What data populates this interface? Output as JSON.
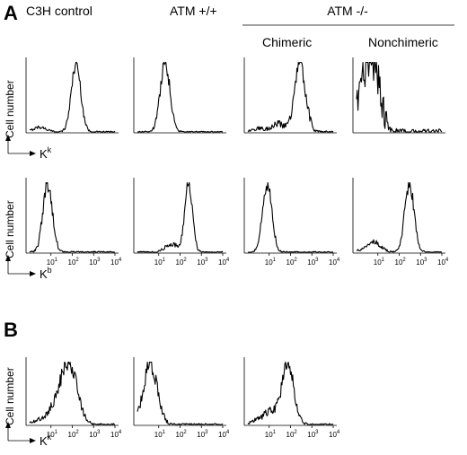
{
  "panels": [
    {
      "letter": "A"
    },
    {
      "letter": "B"
    }
  ],
  "headers": {
    "c3h": "C3H control",
    "atm_wt": "ATM +/+",
    "atm_ko": "ATM -/-",
    "chimeric": "Chimeric",
    "nonchimeric": "Nonchimeric"
  },
  "axis_labels": {
    "y": "Cell number",
    "x_kk_base": "K",
    "x_kk_sup": "k",
    "x_kb_base": "K",
    "x_kb_sup": "b"
  },
  "tick_labels": {
    "base": "10",
    "exps": [
      "1",
      "2",
      "3",
      "4"
    ]
  },
  "chart_data": [
    {
      "type": "area",
      "panel": "A",
      "row": 1,
      "group": "C3H control",
      "marker": "Kk",
      "x_scale": "log",
      "xlim": [
        1,
        10000
      ],
      "peak_x": 150,
      "width_decades": 0.22,
      "noise": 0.1,
      "extras": [
        {
          "x": 3,
          "h": 0.07
        }
      ]
    },
    {
      "type": "area",
      "panel": "A",
      "row": 1,
      "group": "ATM +/+",
      "marker": "Kk",
      "x_scale": "log",
      "xlim": [
        1,
        10000
      ],
      "peak_x": 20,
      "width_decades": 0.23,
      "noise": 0.1,
      "extras": []
    },
    {
      "type": "area",
      "panel": "A",
      "row": 1,
      "group": "ATM -/- Chimeric",
      "marker": "Kk",
      "x_scale": "log",
      "xlim": [
        1,
        10000
      ],
      "peak_x": 280,
      "width_decades": 0.26,
      "noise": 0.14,
      "extras": [
        {
          "x": 25,
          "h": 0.12
        },
        {
          "x": 3,
          "h": 0.05
        }
      ]
    },
    {
      "type": "area",
      "panel": "A",
      "row": 1,
      "group": "ATM -/- Nonchimeric",
      "marker": "Kk",
      "x_scale": "log",
      "xlim": [
        1,
        10000
      ],
      "peak_x": 6,
      "width_decades": 0.32,
      "noise": 0.38,
      "extras": [
        {
          "x": 2,
          "h": 0.5
        }
      ]
    },
    {
      "type": "area",
      "panel": "A",
      "row": 2,
      "group": "C3H control",
      "marker": "Kb",
      "x_scale": "log",
      "xlim": [
        1,
        10000
      ],
      "peak_x": 7,
      "width_decades": 0.22,
      "noise": 0.12,
      "extras": []
    },
    {
      "type": "area",
      "panel": "A",
      "row": 2,
      "group": "ATM +/+",
      "marker": "Kb",
      "x_scale": "log",
      "xlim": [
        1,
        10000
      ],
      "peak_x": 250,
      "width_decades": 0.18,
      "noise": 0.1,
      "extras": [
        {
          "x": 40,
          "h": 0.12
        }
      ]
    },
    {
      "type": "area",
      "panel": "A",
      "row": 2,
      "group": "ATM -/- Chimeric",
      "marker": "Kb",
      "x_scale": "log",
      "xlim": [
        1,
        10000
      ],
      "peak_x": 8,
      "width_decades": 0.22,
      "noise": 0.1,
      "extras": []
    },
    {
      "type": "area",
      "panel": "A",
      "row": 2,
      "group": "ATM -/- Nonchimeric",
      "marker": "Kb",
      "x_scale": "log",
      "xlim": [
        1,
        10000
      ],
      "peak_x": 300,
      "width_decades": 0.22,
      "noise": 0.1,
      "extras": [
        {
          "x": 8,
          "h": 0.12
        },
        {
          "x": 3,
          "h": 0.06
        }
      ]
    },
    {
      "type": "area",
      "panel": "B",
      "row": 1,
      "group": "C3H control",
      "marker": "Kk",
      "x_scale": "log",
      "xlim": [
        1,
        10000
      ],
      "peak_x": 70,
      "width_decades": 0.38,
      "noise": 0.14,
      "extras": [
        {
          "x": 15,
          "h": 0.22
        },
        {
          "x": 3,
          "h": 0.08
        }
      ]
    },
    {
      "type": "area",
      "panel": "B",
      "row": 1,
      "group": "ATM +/+",
      "marker": "Kk",
      "x_scale": "log",
      "xlim": [
        1,
        10000
      ],
      "peak_x": 4,
      "width_decades": 0.32,
      "noise": 0.14,
      "extras": []
    },
    {
      "type": "area",
      "panel": "B",
      "row": 1,
      "group": "ATM -/- Chimeric",
      "marker": "Kk",
      "x_scale": "log",
      "xlim": [
        1,
        10000
      ],
      "peak_x": 75,
      "width_decades": 0.28,
      "noise": 0.14,
      "extras": [
        {
          "x": 12,
          "h": 0.2
        },
        {
          "x": 3,
          "h": 0.07
        }
      ]
    }
  ]
}
